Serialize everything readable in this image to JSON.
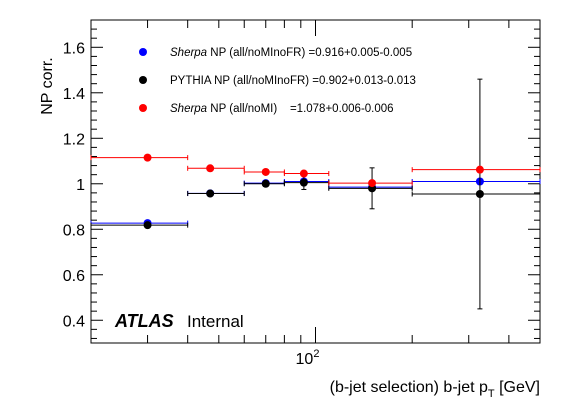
{
  "chart_data": {
    "type": "scatter",
    "ylabel": "NP corr.",
    "xlabel_main": "(b-jet selection) b-jet p",
    "xlabel_sub": "T",
    "xlabel_unit": " [GeV]",
    "x_scale": "log",
    "xlim": [
      20,
      500
    ],
    "ylim": [
      0.3,
      1.72
    ],
    "yticks": [
      0.4,
      0.6,
      0.8,
      1,
      1.2,
      1.4,
      1.6
    ],
    "ytick_labels": [
      "0.4",
      "0.6",
      "0.8",
      "1",
      "1.2",
      "1.4",
      "1.6"
    ],
    "xtick_label_base": "10",
    "xtick_label_exp": "2",
    "grid": false,
    "legend_position": "top-left",
    "series": [
      {
        "legend_label": "Sherpa NP (all/noMInoFR) =0.916+0.005-0.005",
        "legend_italic_part": "Sherpa",
        "legend_rest": " NP (all/noMInoFR) =0.916+0.005-0.005",
        "color": "#0000ff",
        "points": [
          {
            "x": 30,
            "xlo": 20,
            "xhi": 40,
            "y": 0.827,
            "yerr": 0.004
          },
          {
            "x": 47,
            "xlo": 40,
            "xhi": 60,
            "y": 0.958,
            "yerr": 0.004
          },
          {
            "x": 70,
            "xlo": 60,
            "xhi": 80,
            "y": 1.003,
            "yerr": 0.004
          },
          {
            "x": 92,
            "xlo": 80,
            "xhi": 110,
            "y": 1.01,
            "yerr": 0.005
          },
          {
            "x": 150,
            "xlo": 110,
            "xhi": 200,
            "y": 0.985,
            "yerr": 0.006
          },
          {
            "x": 325,
            "xlo": 200,
            "xhi": 500,
            "y": 1.01,
            "yerr": 0.008
          }
        ]
      },
      {
        "legend_label": "PYTHIA NP (all/noMInoFR) =0.902+0.013-0.013",
        "legend_italic_part": "",
        "legend_rest": "PYTHIA NP (all/noMInoFR) =0.902+0.013-0.013",
        "color": "#000000",
        "points": [
          {
            "x": 30,
            "xlo": 20,
            "xhi": 40,
            "y": 0.818,
            "yerr": 0.006
          },
          {
            "x": 47,
            "xlo": 40,
            "xhi": 60,
            "y": 0.957,
            "yerr": 0.006
          },
          {
            "x": 70,
            "xlo": 60,
            "xhi": 80,
            "y": 1.0,
            "yerr": 0.01
          },
          {
            "x": 92,
            "xlo": 80,
            "xhi": 110,
            "y": 1.005,
            "yerr": 0.03
          },
          {
            "x": 150,
            "xlo": 110,
            "xhi": 200,
            "y": 0.98,
            "yerr": 0.09
          },
          {
            "x": 325,
            "xlo": 200,
            "xhi": 500,
            "y": 0.955,
            "yerr": 0.505
          }
        ]
      },
      {
        "legend_label": "Sherpa NP (all/noMI)    =1.078+0.006-0.006",
        "legend_italic_part": "Sherpa",
        "legend_rest": " NP (all/noMI)    =1.078+0.006-0.006",
        "color": "#ff0000",
        "points": [
          {
            "x": 30,
            "xlo": 20,
            "xhi": 40,
            "y": 1.115,
            "yerr": 0.004
          },
          {
            "x": 47,
            "xlo": 40,
            "xhi": 60,
            "y": 1.068,
            "yerr": 0.004
          },
          {
            "x": 70,
            "xlo": 60,
            "xhi": 80,
            "y": 1.052,
            "yerr": 0.004
          },
          {
            "x": 92,
            "xlo": 80,
            "xhi": 110,
            "y": 1.045,
            "yerr": 0.005
          },
          {
            "x": 150,
            "xlo": 110,
            "xhi": 200,
            "y": 1.003,
            "yerr": 0.006
          },
          {
            "x": 325,
            "xlo": 200,
            "xhi": 500,
            "y": 1.062,
            "yerr": 0.008
          }
        ]
      }
    ]
  },
  "branding": {
    "atlas": "ATLAS",
    "internal": "Internal"
  }
}
